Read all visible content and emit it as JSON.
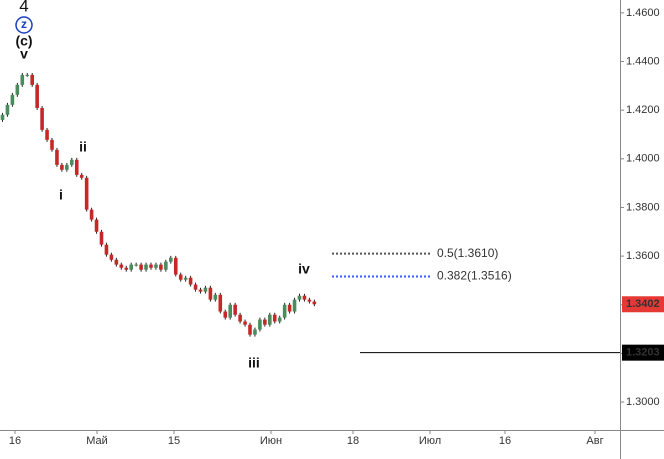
{
  "chart_data": {
    "type": "candlestick",
    "open": [
      1.416,
      1.4181,
      1.4222,
      1.4263,
      1.4304,
      1.4345,
      1.4345,
      1.4304,
      1.4209,
      1.4119,
      1.4078,
      1.4037,
      1.3975,
      1.3955,
      1.3975,
      1.3996,
      1.3934,
      1.3922,
      1.3791,
      1.375,
      1.37,
      1.3647,
      1.3606,
      1.3585,
      1.3565,
      1.3552,
      1.3544,
      1.3565,
      1.3565,
      1.3544,
      1.3565,
      1.3552,
      1.3565,
      1.3544,
      1.3577,
      1.3593,
      1.3524,
      1.3503,
      1.3511,
      1.3483,
      1.3462,
      1.3454,
      1.347,
      1.3421,
      1.3441,
      1.3372,
      1.3347,
      1.34,
      1.3359,
      1.3331,
      1.3318,
      1.3277,
      1.3298,
      1.3339,
      1.3318,
      1.3359,
      1.3331,
      1.3347,
      1.34,
      1.3372,
      1.3421,
      1.3437,
      1.3421,
      1.3413
    ],
    "high": [
      1.4189,
      1.423,
      1.4271,
      1.4312,
      1.4353,
      1.4353,
      1.4353,
      1.4312,
      1.4217,
      1.4127,
      1.4086,
      1.4045,
      1.3983,
      1.3983,
      1.4004,
      1.4004,
      1.3942,
      1.393,
      1.3799,
      1.3758,
      1.3708,
      1.3655,
      1.3614,
      1.3593,
      1.3573,
      1.356,
      1.3573,
      1.3573,
      1.3573,
      1.3573,
      1.3573,
      1.3573,
      1.3573,
      1.3585,
      1.3601,
      1.3601,
      1.3532,
      1.3519,
      1.3519,
      1.3491,
      1.347,
      1.3478,
      1.3478,
      1.3449,
      1.3449,
      1.338,
      1.3408,
      1.3408,
      1.3367,
      1.3339,
      1.3326,
      1.3306,
      1.3347,
      1.3347,
      1.3367,
      1.3367,
      1.3355,
      1.3408,
      1.3408,
      1.3429,
      1.3445,
      1.3445,
      1.3429,
      1.3421
    ],
    "low": [
      1.4152,
      1.4173,
      1.4214,
      1.4255,
      1.4296,
      1.4337,
      1.4296,
      1.4201,
      1.4111,
      1.407,
      1.4029,
      1.3967,
      1.3947,
      1.3947,
      1.3967,
      1.3926,
      1.3914,
      1.3783,
      1.3742,
      1.3692,
      1.3639,
      1.3598,
      1.3577,
      1.3557,
      1.3544,
      1.3536,
      1.3536,
      1.3557,
      1.3536,
      1.3536,
      1.3544,
      1.3544,
      1.3536,
      1.3536,
      1.3569,
      1.3516,
      1.3495,
      1.3495,
      1.3475,
      1.3454,
      1.3446,
      1.3446,
      1.3413,
      1.3413,
      1.3364,
      1.3339,
      1.3339,
      1.3351,
      1.3323,
      1.331,
      1.3269,
      1.3269,
      1.329,
      1.331,
      1.331,
      1.3323,
      1.3323,
      1.3339,
      1.3364,
      1.3364,
      1.3413,
      1.3413,
      1.3405,
      1.3394
    ],
    "close": [
      1.4181,
      1.4222,
      1.4263,
      1.4304,
      1.4345,
      1.4345,
      1.4304,
      1.4209,
      1.4119,
      1.4078,
      1.4037,
      1.3975,
      1.3955,
      1.3975,
      1.3996,
      1.3934,
      1.3922,
      1.3791,
      1.375,
      1.37,
      1.3647,
      1.3606,
      1.3585,
      1.3565,
      1.3552,
      1.3544,
      1.3565,
      1.3565,
      1.3544,
      1.3565,
      1.3552,
      1.3565,
      1.3544,
      1.3577,
      1.3593,
      1.3524,
      1.3503,
      1.3511,
      1.3483,
      1.3462,
      1.3454,
      1.347,
      1.3421,
      1.3441,
      1.3372,
      1.3347,
      1.34,
      1.3359,
      1.3331,
      1.3318,
      1.3277,
      1.3298,
      1.3339,
      1.3318,
      1.3359,
      1.3331,
      1.3347,
      1.34,
      1.3372,
      1.3421,
      1.3437,
      1.3421,
      1.3413,
      1.3402
    ],
    "up_color": "#4a8c5c",
    "down_color": "#c62828",
    "ylim": [
      1.2885,
      1.4653
    ],
    "yticks": [
      {
        "value": 1.46,
        "label": "1.4600"
      },
      {
        "value": 1.44,
        "label": "1.4400"
      },
      {
        "value": 1.42,
        "label": "1.4200"
      },
      {
        "value": 1.4,
        "label": "1.4000"
      },
      {
        "value": 1.38,
        "label": "1.3800"
      },
      {
        "value": 1.36,
        "label": "1.3600"
      },
      {
        "value": 1.34,
        "label": "1.3400"
      },
      {
        "value": 1.32,
        "label": "1.3200"
      },
      {
        "value": 1.3,
        "label": "1.3000"
      }
    ],
    "xticks": [
      "16",
      "Май",
      "15",
      "Июн",
      "18",
      "Июл",
      "16",
      "Авг"
    ],
    "last_price": {
      "value": 1.3402,
      "label": "1.3402",
      "color": "#e53935"
    },
    "horizontal_line": {
      "value": 1.3203,
      "label": "1.3203",
      "color": "#000000"
    },
    "levels": [
      {
        "value": 1.361,
        "label": "0.5(1.3610)",
        "color": "#555555"
      },
      {
        "value": 1.3516,
        "label": "0.382(1.3516)",
        "color": "#3d5afe"
      }
    ],
    "annotations": [
      "4",
      "z",
      "(c)",
      "v",
      "ii",
      "i",
      "iii",
      "iv"
    ]
  }
}
